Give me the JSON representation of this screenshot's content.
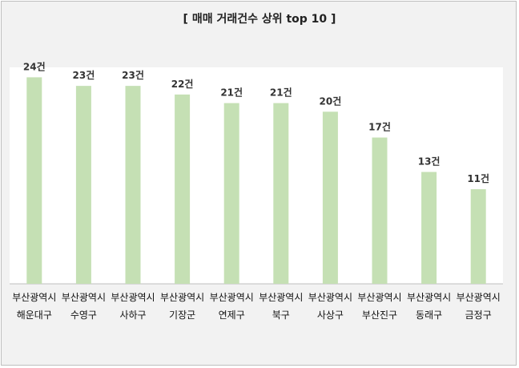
{
  "chart_data": {
    "type": "bar",
    "title": "[ 매매 거래건수 상위 top 10 ]",
    "unit_suffix": "건",
    "categories": [
      [
        "부산광역시",
        "해운대구"
      ],
      [
        "부산광역시",
        "수영구"
      ],
      [
        "부산광역시",
        "사하구"
      ],
      [
        "부산광역시",
        "기장군"
      ],
      [
        "부산광역시",
        "연제구"
      ],
      [
        "부산광역시",
        "북구"
      ],
      [
        "부산광역시",
        "사상구"
      ],
      [
        "부산광역시",
        "부산진구"
      ],
      [
        "부산광역시",
        "동래구"
      ],
      [
        "부산광역시",
        "금정구"
      ]
    ],
    "values": [
      24,
      23,
      23,
      22,
      21,
      21,
      20,
      17,
      13,
      11
    ],
    "ylim": [
      0,
      30
    ],
    "grid": false,
    "legend": "none",
    "colors": {
      "bar": "#c5e0b4",
      "plot_bg": "#ffffff",
      "frame_bg": "#f2f2f2",
      "axis": "#bfbfbf"
    }
  }
}
